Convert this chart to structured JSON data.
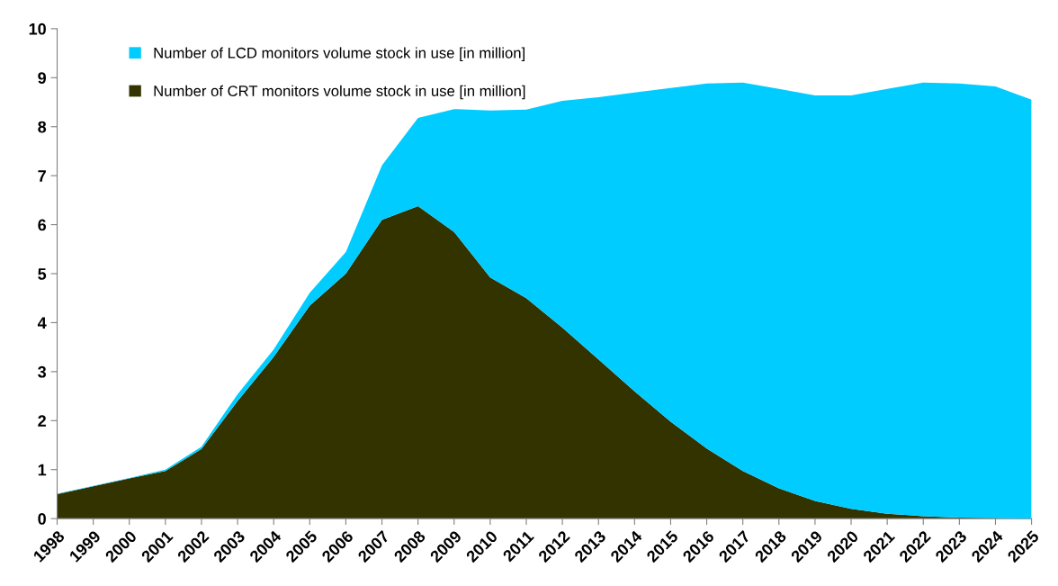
{
  "chart_data": {
    "type": "area",
    "stacked": true,
    "categories": [
      "1998",
      "1999",
      "2000",
      "2001",
      "2002",
      "2003",
      "2004",
      "2005",
      "2006",
      "2007",
      "2008",
      "2009",
      "2010",
      "2011",
      "2012",
      "2013",
      "2014",
      "2015",
      "2016",
      "2017",
      "2018",
      "2019",
      "2020",
      "2021",
      "2022",
      "2023",
      "2024",
      "2025"
    ],
    "series": [
      {
        "name": "Number of CRT monitors volume stock in use [in million]",
        "color": "#333300",
        "values": [
          0.5,
          0.66,
          0.82,
          0.97,
          1.42,
          2.4,
          3.3,
          4.35,
          5.0,
          6.1,
          6.38,
          5.85,
          4.92,
          4.5,
          3.9,
          3.25,
          2.6,
          1.98,
          1.43,
          0.97,
          0.62,
          0.36,
          0.2,
          0.1,
          0.05,
          0.02,
          0.01,
          0.0
        ]
      },
      {
        "name": "Number of LCD monitors volume stock in use [in million]",
        "color": "#00ccff",
        "values": [
          0.01,
          0.01,
          0.01,
          0.03,
          0.05,
          0.14,
          0.15,
          0.26,
          0.44,
          1.11,
          1.8,
          2.51,
          3.41,
          3.85,
          4.63,
          5.35,
          6.1,
          6.81,
          7.45,
          7.93,
          8.15,
          8.28,
          8.44,
          8.67,
          8.85,
          8.86,
          8.81,
          8.55
        ]
      }
    ],
    "ylim": [
      0,
      10
    ],
    "yticks": [
      0,
      1,
      2,
      3,
      4,
      5,
      6,
      7,
      8,
      9,
      10
    ],
    "grid": false,
    "legend": "top left"
  }
}
